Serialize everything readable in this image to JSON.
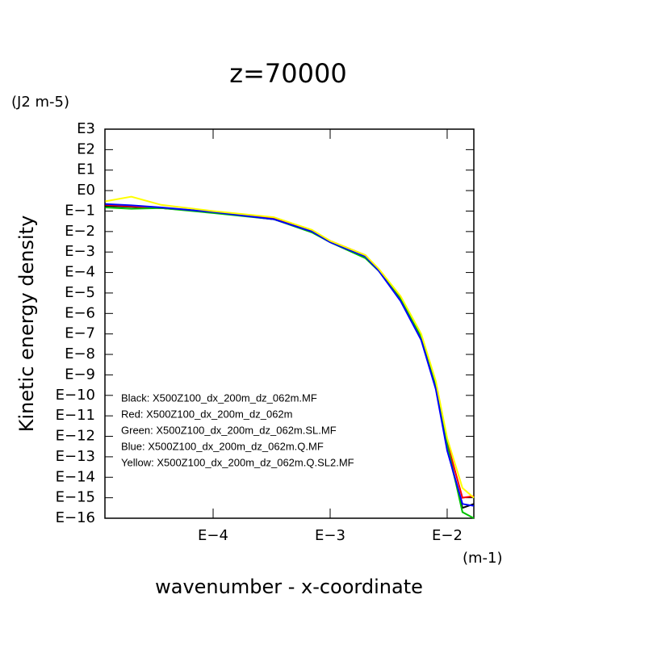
{
  "chart_data": {
    "type": "line",
    "title": "z=70000",
    "y_unit": "(J2 m-5)",
    "ylabel": "Kinetic energy density",
    "xlabel": "wavenumber - x-coordinate",
    "x_unit": "(m-1)",
    "xscale": "log",
    "yscale": "log",
    "xlim": [
      1.19e-05,
      0.0169
    ],
    "ylim": [
      1e-16,
      1000
    ],
    "xticks": [
      {
        "value": 0.0001,
        "label": "E−4"
      },
      {
        "value": 0.001,
        "label": "E−3"
      },
      {
        "value": 0.01,
        "label": "E−2"
      }
    ],
    "yticks": [
      {
        "value": 1000,
        "label": "E3"
      },
      {
        "value": 100,
        "label": "E2"
      },
      {
        "value": 10,
        "label": "E1"
      },
      {
        "value": 1,
        "label": "E0"
      },
      {
        "value": 0.1,
        "label": "E−1"
      },
      {
        "value": 0.01,
        "label": "E−2"
      },
      {
        "value": 0.001,
        "label": "E−3"
      },
      {
        "value": 0.0001,
        "label": "E−4"
      },
      {
        "value": 1e-05,
        "label": "E−5"
      },
      {
        "value": 1e-06,
        "label": "E−6"
      },
      {
        "value": 1e-07,
        "label": "E−7"
      },
      {
        "value": 1e-08,
        "label": "E−8"
      },
      {
        "value": 1e-09,
        "label": "E−9"
      },
      {
        "value": 1e-10,
        "label": "E−10"
      },
      {
        "value": 1e-11,
        "label": "E−11"
      },
      {
        "value": 1e-12,
        "label": "E−12"
      },
      {
        "value": 1e-13,
        "label": "E−13"
      },
      {
        "value": 1e-14,
        "label": "E−14"
      },
      {
        "value": 1e-15,
        "label": "E−15"
      },
      {
        "value": 1e-16,
        "label": "E−16"
      }
    ],
    "x": [
      1.2e-05,
      2e-05,
      3.6e-05,
      0.0001,
      0.00033,
      0.0007,
      0.001,
      0.002,
      0.0026,
      0.004,
      0.006,
      0.008,
      0.01,
      0.0135,
      0.0169
    ],
    "series": [
      {
        "name": "Black: X500Z100_dx_200m_dz_062m.MF",
        "color": "#000000",
        "values": [
          0.18,
          0.16,
          0.14,
          0.089,
          0.04,
          0.01,
          0.0032,
          0.00063,
          0.00013,
          5e-06,
          6.3e-08,
          2.5e-10,
          2.5e-13,
          3.2e-16,
          5e-16
        ]
      },
      {
        "name": "Red: X500Z100_dx_200m_dz_062m",
        "color": "#ff0000",
        "values": [
          0.2,
          0.17,
          0.14,
          0.09,
          0.045,
          0.011,
          0.0035,
          0.0007,
          0.00014,
          6e-06,
          8e-08,
          4e-10,
          5e-13,
          1e-15,
          1.2e-15
        ]
      },
      {
        "name": "Green: X500Z100_dx_200m_dz_062m.SL.MF",
        "color": "#00c000",
        "values": [
          0.15,
          0.13,
          0.14,
          0.08,
          0.04,
          0.009,
          0.003,
          0.0005,
          0.00012,
          5e-06,
          7e-08,
          3e-10,
          4e-13,
          2e-16,
          1e-16
        ]
      },
      {
        "name": "Blue: X500Z100_dx_200m_dz_062m.Q.MF",
        "color": "#0000ff",
        "values": [
          0.22,
          0.19,
          0.15,
          0.09,
          0.04,
          0.01,
          0.003,
          0.0006,
          0.00012,
          4e-06,
          5e-08,
          2e-10,
          2e-13,
          5e-16,
          4e-16
        ]
      },
      {
        "name": "Yellow: X500Z100_dx_200m_dz_062m.Q.SL2.MF",
        "color": "#ffff00",
        "values": [
          0.3,
          0.5,
          0.2,
          0.1,
          0.05,
          0.012,
          0.0035,
          0.0007,
          0.00015,
          7e-06,
          1e-07,
          5e-10,
          8e-13,
          3e-15,
          1e-15
        ]
      }
    ]
  }
}
